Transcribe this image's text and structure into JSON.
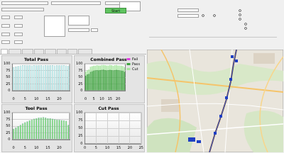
{
  "app": {
    "start_button": "Start"
  },
  "chart_data": [
    {
      "type": "bar",
      "title": "Total Pass",
      "color": "#bff0f0",
      "grid": true,
      "categories": [
        0,
        null,
        null,
        null,
        null,
        5,
        null,
        null,
        null,
        null,
        10,
        null,
        null,
        null,
        null,
        15,
        null,
        null,
        null,
        null,
        20,
        null,
        null,
        null,
        null
      ],
      "values": [
        88,
        90,
        92,
        94,
        95,
        95,
        96,
        95,
        94,
        95,
        96,
        95,
        95,
        94,
        95,
        96,
        95,
        95,
        94,
        95,
        95,
        96,
        95,
        94,
        93
      ],
      "ylim": [
        0,
        100
      ],
      "yticks": [
        0,
        25,
        50,
        75,
        100
      ]
    },
    {
      "type": "bar",
      "title": "Combined Pass",
      "stacked": true,
      "legend": "right",
      "grid": true,
      "categories": [
        0,
        null,
        null,
        null,
        null,
        5,
        null,
        null,
        null,
        null,
        10,
        null,
        null,
        null,
        null,
        15,
        null,
        null,
        null,
        null,
        20,
        null,
        null,
        null,
        null
      ],
      "series": [
        {
          "name": "Fail",
          "color": "#e040e0",
          "values": [
            1,
            1,
            1,
            1,
            1,
            1,
            1,
            1,
            1,
            1,
            1,
            1,
            1,
            1,
            1,
            1,
            1,
            1,
            1,
            1,
            1,
            1,
            1,
            1,
            1
          ]
        },
        {
          "name": "Pass",
          "color": "#3da33d",
          "values": [
            55,
            60,
            62,
            70,
            72,
            74,
            75,
            76,
            75,
            76,
            77,
            78,
            76,
            75,
            76,
            77,
            76,
            75,
            76,
            77,
            76,
            75,
            74,
            73,
            70
          ]
        },
        {
          "name": "Cut",
          "color": "#a8e6a0",
          "values": [
            15,
            15,
            16,
            18,
            18,
            18,
            17,
            18,
            18,
            17,
            18,
            17,
            18,
            18,
            17,
            18,
            18,
            17,
            18,
            18,
            17,
            18,
            18,
            18,
            17
          ]
        }
      ],
      "ylim": [
        0,
        100
      ],
      "yticks": [
        0,
        25,
        50,
        75,
        100
      ]
    },
    {
      "type": "bar",
      "title": "Tool Pass",
      "color": "#6fd66f",
      "grid": true,
      "categories": [
        0,
        null,
        null,
        null,
        null,
        5,
        null,
        null,
        null,
        null,
        10,
        null,
        null,
        null,
        null,
        15,
        null,
        null,
        null,
        null,
        20,
        null,
        null,
        null,
        null
      ],
      "values": [
        40,
        45,
        50,
        55,
        60,
        65,
        68,
        72,
        75,
        78,
        80,
        82,
        83,
        84,
        82,
        80,
        80,
        78,
        76,
        75,
        74,
        73,
        72,
        70,
        55
      ],
      "ylim": [
        0,
        100
      ],
      "yticks": [
        0,
        25,
        50,
        75,
        100
      ]
    },
    {
      "type": "line",
      "title": "Cut Pass",
      "grid": true,
      "xlim": [
        0,
        25
      ],
      "xticks": [
        0,
        5,
        10,
        15,
        20,
        25
      ],
      "ylim": [
        0,
        100
      ],
      "yticks": [
        0,
        25,
        50,
        75,
        100
      ]
    }
  ]
}
